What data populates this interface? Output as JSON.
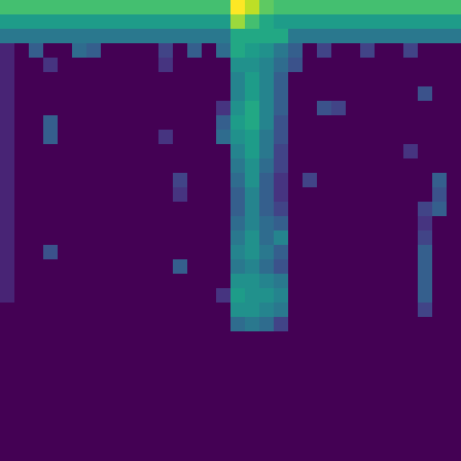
{
  "chart_data": {
    "type": "heatmap",
    "color": "viridis",
    "tick_labels": false,
    "z": [
      [
        0.7,
        0.7,
        0.7,
        0.7,
        0.7,
        0.7,
        0.7,
        0.7,
        0.7,
        0.7,
        0.7,
        0.7,
        0.7,
        0.7,
        0.7,
        0.7,
        1,
        0.9,
        0.75,
        0.7,
        0.7,
        0.7,
        0.7,
        0.7,
        0.7,
        0.7,
        0.7,
        0.7,
        0.7,
        0.7,
        0.7,
        0.7
      ],
      [
        0.55,
        0.55,
        0.55,
        0.55,
        0.55,
        0.55,
        0.55,
        0.55,
        0.55,
        0.55,
        0.55,
        0.55,
        0.55,
        0.55,
        0.55,
        0.55,
        0.85,
        0.7,
        0.6,
        0.55,
        0.55,
        0.55,
        0.55,
        0.55,
        0.55,
        0.55,
        0.55,
        0.55,
        0.55,
        0.55,
        0.55,
        0.55
      ],
      [
        0.4,
        0.4,
        0.4,
        0.4,
        0.4,
        0.4,
        0.4,
        0.4,
        0.4,
        0.4,
        0.4,
        0.4,
        0.4,
        0.4,
        0.4,
        0.4,
        0.6,
        0.6,
        0.6,
        0.6,
        0.4,
        0.4,
        0.4,
        0.4,
        0.4,
        0.4,
        0.4,
        0.4,
        0.4,
        0.4,
        0.4,
        0.4
      ],
      [
        0.1,
        0,
        0.3,
        0,
        0,
        0.35,
        0.3,
        0,
        0,
        0,
        0,
        0.2,
        0,
        0.3,
        0,
        0.35,
        0.6,
        0.55,
        0.5,
        0.4,
        0.3,
        0,
        0.2,
        0,
        0,
        0.2,
        0,
        0,
        0.2,
        0,
        0,
        0
      ],
      [
        0.1,
        0,
        0,
        0.15,
        0,
        0,
        0,
        0,
        0,
        0,
        0,
        0.15,
        0,
        0,
        0,
        0,
        0.5,
        0.5,
        0.45,
        0.35,
        0.25,
        0,
        0,
        0,
        0,
        0,
        0,
        0,
        0,
        0,
        0,
        0
      ],
      [
        0.1,
        0,
        0,
        0,
        0,
        0,
        0,
        0,
        0,
        0,
        0,
        0,
        0,
        0,
        0,
        0,
        0.45,
        0.55,
        0.45,
        0.3,
        0,
        0,
        0,
        0,
        0,
        0,
        0,
        0,
        0,
        0,
        0,
        0
      ],
      [
        0.1,
        0,
        0,
        0,
        0,
        0,
        0,
        0,
        0,
        0,
        0,
        0,
        0,
        0,
        0,
        0,
        0.45,
        0.55,
        0.45,
        0.3,
        0,
        0,
        0,
        0,
        0,
        0,
        0,
        0,
        0,
        0.25,
        0,
        0
      ],
      [
        0.1,
        0,
        0,
        0,
        0,
        0,
        0,
        0,
        0,
        0,
        0,
        0,
        0,
        0,
        0,
        0.15,
        0.5,
        0.6,
        0.45,
        0.3,
        0,
        0,
        0.25,
        0.2,
        0,
        0,
        0,
        0,
        0,
        0,
        0,
        0
      ],
      [
        0.1,
        0,
        0,
        0.3,
        0,
        0,
        0,
        0,
        0,
        0,
        0,
        0,
        0,
        0,
        0,
        0.3,
        0.55,
        0.6,
        0.45,
        0.25,
        0,
        0,
        0,
        0,
        0,
        0,
        0,
        0,
        0,
        0,
        0,
        0
      ],
      [
        0.1,
        0,
        0,
        0.3,
        0,
        0,
        0,
        0,
        0,
        0,
        0,
        0.15,
        0,
        0,
        0,
        0.35,
        0.5,
        0.55,
        0.4,
        0.25,
        0,
        0,
        0,
        0,
        0,
        0,
        0,
        0,
        0,
        0,
        0,
        0
      ],
      [
        0.1,
        0,
        0,
        0,
        0,
        0,
        0,
        0,
        0,
        0,
        0,
        0,
        0,
        0,
        0,
        0,
        0.45,
        0.55,
        0.4,
        0.2,
        0,
        0,
        0,
        0,
        0,
        0,
        0,
        0,
        0.15,
        0,
        0,
        0
      ],
      [
        0.1,
        0,
        0,
        0,
        0,
        0,
        0,
        0,
        0,
        0,
        0,
        0,
        0,
        0,
        0,
        0,
        0.4,
        0.5,
        0.35,
        0.2,
        0,
        0,
        0,
        0,
        0,
        0,
        0,
        0,
        0,
        0,
        0,
        0
      ],
      [
        0.1,
        0,
        0,
        0,
        0,
        0,
        0,
        0,
        0,
        0,
        0,
        0,
        0.2,
        0,
        0,
        0,
        0.35,
        0.5,
        0.3,
        0.15,
        0,
        0.2,
        0,
        0,
        0,
        0,
        0,
        0,
        0,
        0,
        0.3,
        0
      ],
      [
        0.1,
        0,
        0,
        0,
        0,
        0,
        0,
        0,
        0,
        0,
        0,
        0,
        0.15,
        0,
        0,
        0,
        0.3,
        0.45,
        0.3,
        0.15,
        0,
        0,
        0,
        0,
        0,
        0,
        0,
        0,
        0,
        0,
        0.25,
        0
      ],
      [
        0.1,
        0,
        0,
        0,
        0,
        0,
        0,
        0,
        0,
        0,
        0,
        0,
        0,
        0,
        0,
        0,
        0.3,
        0.45,
        0.3,
        0.2,
        0,
        0,
        0,
        0,
        0,
        0,
        0,
        0,
        0,
        0.2,
        0.3,
        0
      ],
      [
        0.1,
        0,
        0,
        0,
        0,
        0,
        0,
        0,
        0,
        0,
        0,
        0,
        0,
        0,
        0,
        0,
        0.35,
        0.45,
        0.35,
        0.3,
        0,
        0,
        0,
        0,
        0,
        0,
        0,
        0,
        0,
        0.15,
        0,
        0
      ],
      [
        0.1,
        0,
        0,
        0,
        0,
        0,
        0,
        0,
        0,
        0,
        0,
        0,
        0,
        0,
        0,
        0,
        0.4,
        0.5,
        0.35,
        0.45,
        0,
        0,
        0,
        0,
        0,
        0,
        0,
        0,
        0,
        0.2,
        0,
        0
      ],
      [
        0.1,
        0,
        0,
        0.25,
        0,
        0,
        0,
        0,
        0,
        0,
        0,
        0,
        0,
        0,
        0,
        0,
        0.45,
        0.5,
        0.4,
        0.3,
        0,
        0,
        0,
        0,
        0,
        0,
        0,
        0,
        0,
        0.3,
        0,
        0
      ],
      [
        0.1,
        0,
        0,
        0,
        0,
        0,
        0,
        0,
        0,
        0,
        0,
        0,
        0.3,
        0,
        0,
        0,
        0.4,
        0.45,
        0.35,
        0.25,
        0,
        0,
        0,
        0,
        0,
        0,
        0,
        0,
        0,
        0.3,
        0,
        0
      ],
      [
        0.1,
        0,
        0,
        0,
        0,
        0,
        0,
        0,
        0,
        0,
        0,
        0,
        0,
        0,
        0,
        0,
        0.5,
        0.5,
        0.45,
        0.4,
        0,
        0,
        0,
        0,
        0,
        0,
        0,
        0,
        0,
        0.3,
        0,
        0
      ],
      [
        0.1,
        0,
        0,
        0,
        0,
        0,
        0,
        0,
        0,
        0,
        0,
        0,
        0,
        0,
        0,
        0.15,
        0.55,
        0.5,
        0.5,
        0.45,
        0,
        0,
        0,
        0,
        0,
        0,
        0,
        0,
        0,
        0.3,
        0,
        0
      ],
      [
        0,
        0,
        0,
        0,
        0,
        0,
        0,
        0,
        0,
        0,
        0,
        0,
        0,
        0,
        0,
        0,
        0.5,
        0.5,
        0.45,
        0.4,
        0,
        0,
        0,
        0,
        0,
        0,
        0,
        0,
        0,
        0.2,
        0,
        0
      ],
      [
        0,
        0,
        0,
        0,
        0,
        0,
        0,
        0,
        0,
        0,
        0,
        0,
        0,
        0,
        0,
        0,
        0.35,
        0.4,
        0.35,
        0.2,
        0,
        0,
        0,
        0,
        0,
        0,
        0,
        0,
        0,
        0,
        0,
        0
      ],
      [
        0,
        0,
        0,
        0,
        0,
        0,
        0,
        0,
        0,
        0,
        0,
        0,
        0,
        0,
        0,
        0,
        0,
        0,
        0,
        0,
        0,
        0,
        0,
        0,
        0,
        0,
        0,
        0,
        0,
        0,
        0,
        0
      ],
      [
        0,
        0,
        0,
        0,
        0,
        0,
        0,
        0,
        0,
        0,
        0,
        0,
        0,
        0,
        0,
        0,
        0,
        0,
        0,
        0,
        0,
        0,
        0,
        0,
        0,
        0,
        0,
        0,
        0,
        0,
        0,
        0
      ],
      [
        0,
        0,
        0,
        0,
        0,
        0,
        0,
        0,
        0,
        0,
        0,
        0,
        0,
        0,
        0,
        0,
        0,
        0,
        0,
        0,
        0,
        0,
        0,
        0,
        0,
        0,
        0,
        0,
        0,
        0,
        0,
        0
      ],
      [
        0,
        0,
        0,
        0,
        0,
        0,
        0,
        0,
        0,
        0,
        0,
        0,
        0,
        0,
        0,
        0,
        0,
        0,
        0,
        0,
        0,
        0,
        0,
        0,
        0,
        0,
        0,
        0,
        0,
        0,
        0,
        0
      ],
      [
        0,
        0,
        0,
        0,
        0,
        0,
        0,
        0,
        0,
        0,
        0,
        0,
        0,
        0,
        0,
        0,
        0,
        0,
        0,
        0,
        0,
        0,
        0,
        0,
        0,
        0,
        0,
        0,
        0,
        0,
        0,
        0
      ],
      [
        0,
        0,
        0,
        0,
        0,
        0,
        0,
        0,
        0,
        0,
        0,
        0,
        0,
        0,
        0,
        0,
        0,
        0,
        0,
        0,
        0,
        0,
        0,
        0,
        0,
        0,
        0,
        0,
        0,
        0,
        0,
        0
      ],
      [
        0,
        0,
        0,
        0,
        0,
        0,
        0,
        0,
        0,
        0,
        0,
        0,
        0,
        0,
        0,
        0,
        0,
        0,
        0,
        0,
        0,
        0,
        0,
        0,
        0,
        0,
        0,
        0,
        0,
        0,
        0,
        0
      ],
      [
        0,
        0,
        0,
        0,
        0,
        0,
        0,
        0,
        0,
        0,
        0,
        0,
        0,
        0,
        0,
        0,
        0,
        0,
        0,
        0,
        0,
        0,
        0,
        0,
        0,
        0,
        0,
        0,
        0,
        0,
        0,
        0
      ],
      [
        0,
        0,
        0,
        0,
        0,
        0,
        0,
        0,
        0,
        0,
        0,
        0,
        0,
        0,
        0,
        0,
        0,
        0,
        0,
        0,
        0,
        0,
        0,
        0,
        0,
        0,
        0,
        0,
        0,
        0,
        0,
        0
      ]
    ]
  }
}
